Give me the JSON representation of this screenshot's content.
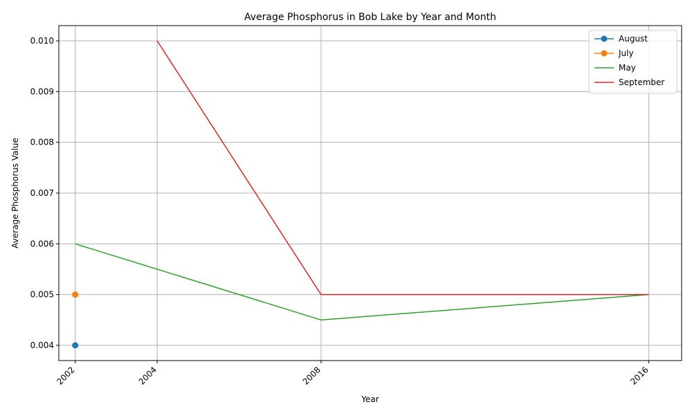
{
  "chart_data": {
    "type": "line",
    "title": "Average Phosphorus in Bob Lake by Year and Month",
    "xlabel": "Year",
    "ylabel": "Average Phosphorus Value",
    "xlim": [
      2001.6,
      2016.8
    ],
    "ylim": [
      0.0037,
      0.0103
    ],
    "x_ticks": [
      2002,
      2004,
      2008,
      2016
    ],
    "y_ticks": [
      0.004,
      0.005,
      0.006,
      0.007,
      0.008,
      0.009,
      0.01
    ],
    "y_tick_labels": [
      "0.004",
      "0.005",
      "0.006",
      "0.007",
      "0.008",
      "0.009",
      "0.010"
    ],
    "grid": true,
    "legend_position": "top-right",
    "series": [
      {
        "name": "August",
        "color": "#1f77b4",
        "marker": true,
        "x": [
          2002
        ],
        "y": [
          0.004
        ]
      },
      {
        "name": "July",
        "color": "#ff7f0e",
        "marker": true,
        "x": [
          2002
        ],
        "y": [
          0.005
        ]
      },
      {
        "name": "May",
        "color": "#2ca02c",
        "marker": false,
        "x": [
          2002,
          2008,
          2016
        ],
        "y": [
          0.006,
          0.0045,
          0.005
        ]
      },
      {
        "name": "September",
        "color": "#d62728",
        "marker": false,
        "x": [
          2004,
          2008,
          2016
        ],
        "y": [
          0.01,
          0.005,
          0.005
        ]
      }
    ]
  }
}
